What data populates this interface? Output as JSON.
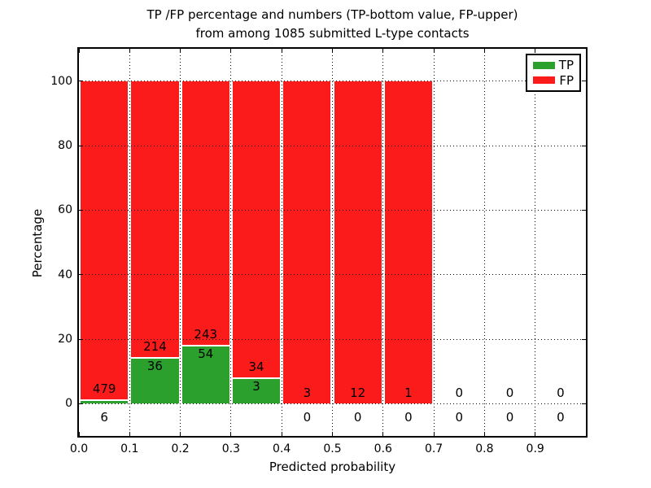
{
  "title": {
    "line1": "TP /FP percentage and numbers (TP-bottom value, FP-upper)",
    "line2": "from among 1085 submitted L-type contacts"
  },
  "axes": {
    "xlabel": "Predicted probability",
    "ylabel": "Percentage",
    "xtick_labels": [
      "0.0",
      "0.1",
      "0.2",
      "0.3",
      "0.4",
      "0.5",
      "0.6",
      "0.7",
      "0.8",
      "0.9"
    ],
    "xtick_values": [
      0.0,
      0.1,
      0.2,
      0.3,
      0.4,
      0.5,
      0.6,
      0.7,
      0.8,
      0.9
    ],
    "ytick_labels": [
      "0",
      "20",
      "40",
      "60",
      "80",
      "100"
    ],
    "ytick_values": [
      0,
      20,
      40,
      60,
      80,
      100
    ]
  },
  "legend": {
    "entries": [
      {
        "label": "TP",
        "color": "#2ca02c"
      },
      {
        "label": "FP",
        "color": "#fb1b1b"
      }
    ],
    "position": "upper right"
  },
  "chart_data": {
    "type": "bar",
    "stacked": true,
    "normalized_to_percent": true,
    "title": "TP /FP percentage and numbers (TP-bottom value, FP-upper) from among 1085 submitted L-type contacts",
    "xlabel": "Predicted probability",
    "ylabel": "Percentage",
    "xlim": [
      0.0,
      1.0
    ],
    "ylim": [
      -10,
      110
    ],
    "grid": "dotted",
    "legend_position": "upper right",
    "total_contacts": 1085,
    "bin_width": 0.1,
    "bin_edges": [
      0.0,
      0.1,
      0.2,
      0.3,
      0.4,
      0.5,
      0.6,
      0.7,
      0.8,
      0.9,
      1.0
    ],
    "series": [
      {
        "name": "TP",
        "color": "#2ca02c",
        "counts": [
          6,
          36,
          54,
          3,
          0,
          0,
          0,
          0,
          0,
          0
        ]
      },
      {
        "name": "FP",
        "color": "#fb1b1b",
        "counts": [
          479,
          214,
          243,
          34,
          3,
          12,
          1,
          0,
          0,
          0
        ]
      }
    ],
    "tp_percent_per_bin": [
      1.2,
      14.4,
      18.2,
      8.1,
      0,
      0,
      0,
      0,
      0,
      0
    ],
    "bars_reach_percent": [
      100,
      100,
      100,
      100,
      100,
      100,
      100,
      0,
      0,
      0
    ]
  }
}
